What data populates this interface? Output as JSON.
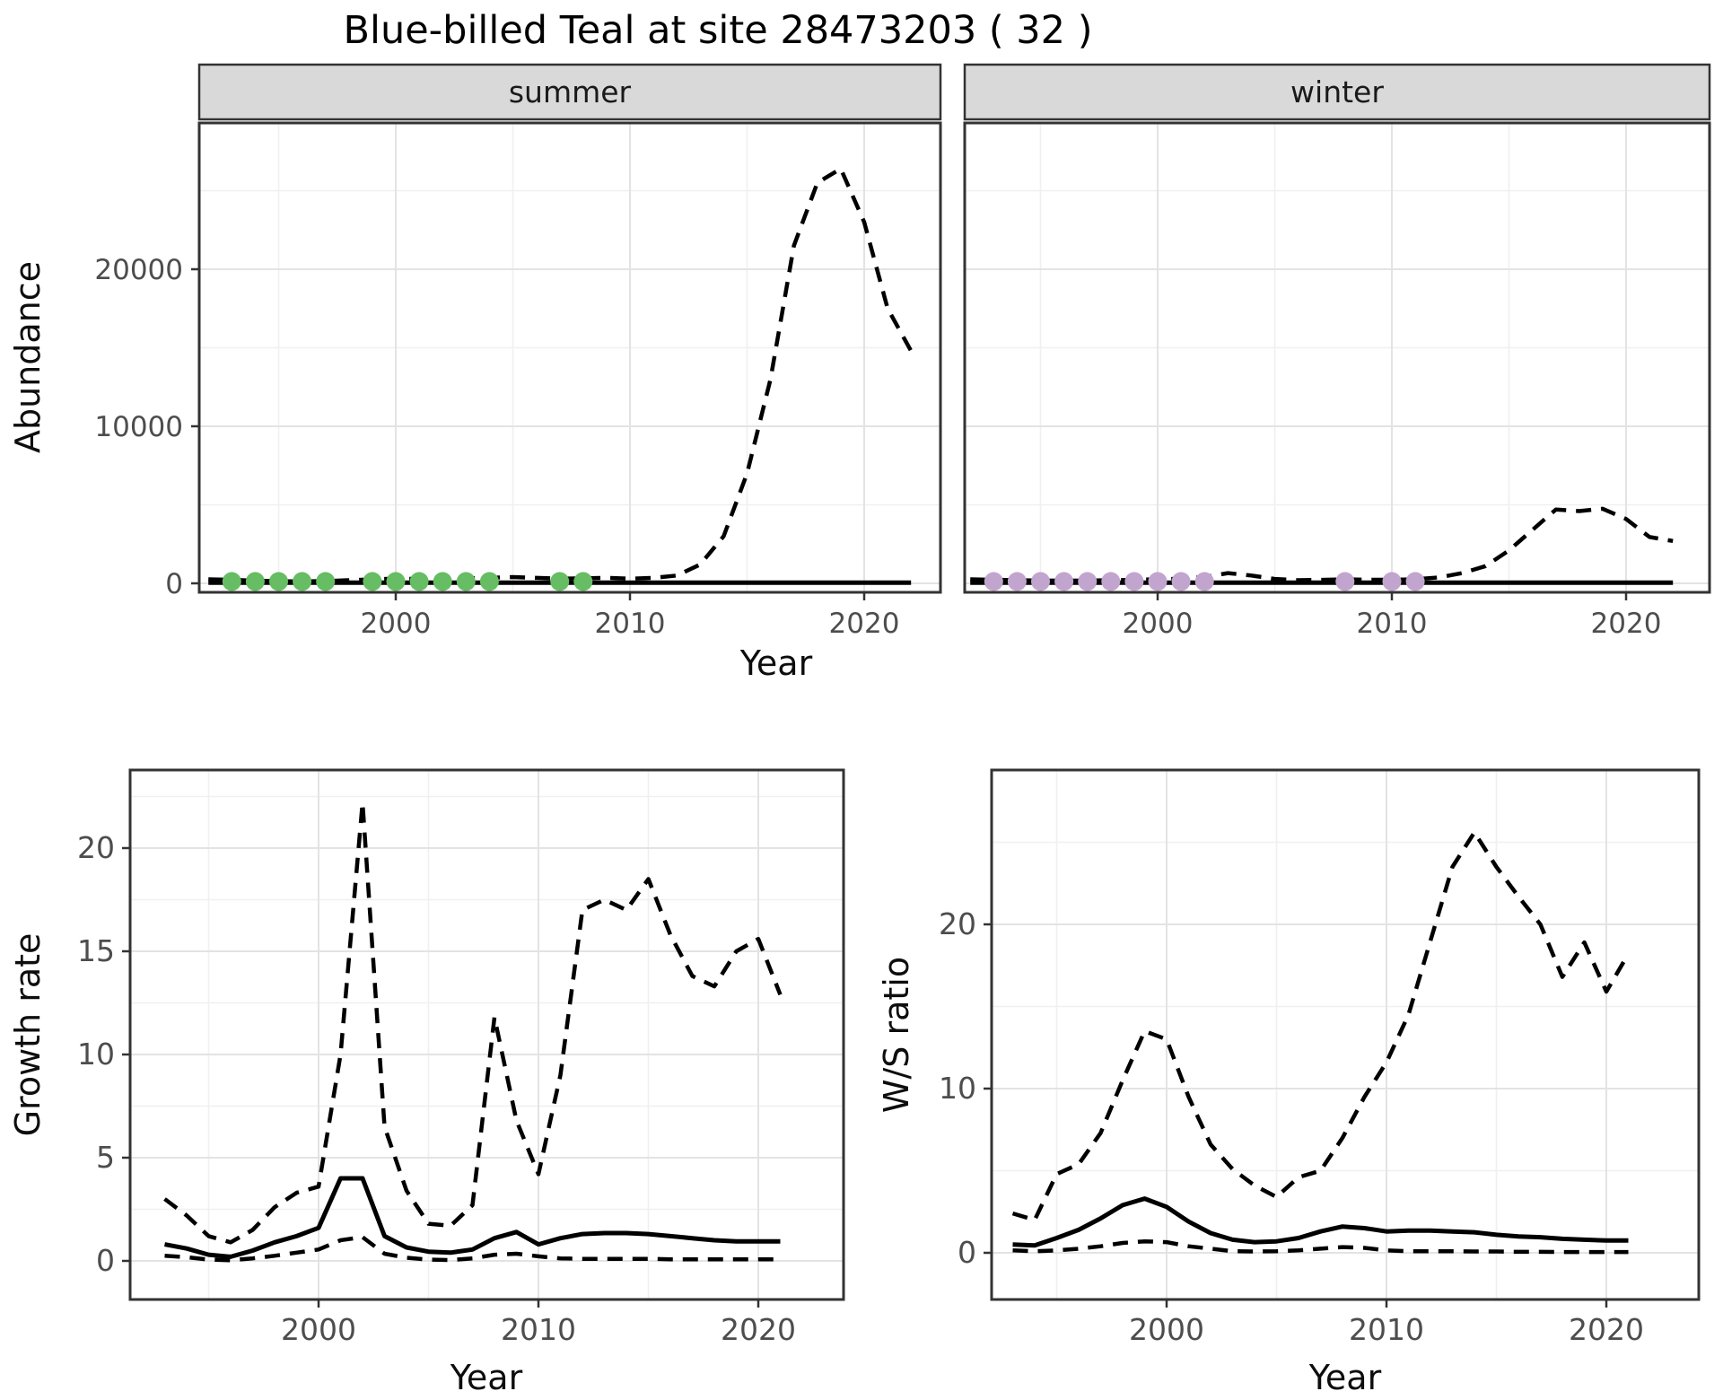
{
  "title": "Blue-billed Teal at site 28473203 ( 32 )",
  "colors": {
    "summer_point": "#66BD63",
    "winter_point": "#C2A5CF",
    "line": "#000000",
    "strip_bg": "#D9D9D9",
    "panel_border": "#333333",
    "grid_major": "#E3E3E3",
    "grid_minor": "#F0F0F0",
    "tick_label": "#4D4D4D"
  },
  "chart_data": [
    {
      "type": "line",
      "facet": "summer",
      "xlabel": "Year",
      "ylabel": "Abundance",
      "xticks": [
        2000,
        2010,
        2020
      ],
      "xticks_minor": [
        1995,
        2005,
        2015
      ],
      "yticks": [
        0,
        10000,
        20000
      ],
      "yticks_minor": [
        5000,
        15000,
        25000
      ],
      "xlim": [
        1991.6,
        2023.3
      ],
      "ylim": [
        -600,
        29300
      ],
      "grid": true,
      "x": [
        1992,
        1993,
        1994,
        1995,
        1996,
        1997,
        1998,
        1999,
        2000,
        2001,
        2002,
        2003,
        2004,
        2005,
        2006,
        2007,
        2008,
        2009,
        2010,
        2011,
        2012,
        2013,
        2014,
        2015,
        2016,
        2017,
        2018,
        2019,
        2020,
        2021,
        2022
      ],
      "series": [
        {
          "name": "mean",
          "style": "solid",
          "values": [
            40,
            40,
            40,
            40,
            40,
            40,
            40,
            40,
            40,
            40,
            40,
            40,
            40,
            40,
            40,
            40,
            40,
            40,
            40,
            40,
            40,
            40,
            40,
            40,
            40,
            40,
            40,
            40,
            40,
            40,
            40
          ]
        },
        {
          "name": "upper95",
          "style": "dashed",
          "values": [
            260,
            220,
            170,
            140,
            120,
            150,
            200,
            260,
            300,
            280,
            260,
            320,
            350,
            400,
            350,
            300,
            320,
            350,
            300,
            350,
            500,
            1200,
            3000,
            7000,
            13000,
            21500,
            25500,
            26400,
            23000,
            17500,
            14800
          ]
        }
      ],
      "points": {
        "name": "observed-counts",
        "color": "#66BD63",
        "x": [
          1993,
          1994,
          1995,
          1996,
          1997,
          1999,
          2000,
          2001,
          2002,
          2003,
          2004,
          2007,
          2008
        ],
        "y": [
          120,
          120,
          120,
          120,
          120,
          120,
          120,
          120,
          120,
          120,
          120,
          120,
          120
        ]
      }
    },
    {
      "type": "line",
      "facet": "winter",
      "xlabel": "Year",
      "ylabel": "Abundance",
      "xticks": [
        2000,
        2010,
        2020
      ],
      "xticks_minor": [
        1995,
        2005,
        2015
      ],
      "yticks": [
        0,
        10000,
        20000
      ],
      "yticks_minor": [
        5000,
        15000,
        25000
      ],
      "xlim": [
        1991.6,
        2023.3
      ],
      "ylim": [
        -600,
        29300
      ],
      "grid": true,
      "x": [
        1992,
        1993,
        1994,
        1995,
        1996,
        1997,
        1998,
        1999,
        2000,
        2001,
        2002,
        2003,
        2004,
        2005,
        2006,
        2007,
        2008,
        2009,
        2010,
        2011,
        2012,
        2013,
        2014,
        2015,
        2016,
        2017,
        2018,
        2019,
        2020,
        2021,
        2022
      ],
      "series": [
        {
          "name": "mean",
          "style": "solid",
          "values": [
            40,
            40,
            40,
            40,
            40,
            40,
            40,
            40,
            40,
            40,
            40,
            40,
            40,
            40,
            40,
            40,
            40,
            40,
            40,
            40,
            40,
            40,
            40,
            40,
            40,
            40,
            40,
            40,
            40,
            40,
            40
          ]
        },
        {
          "name": "upper95",
          "style": "dashed",
          "values": [
            260,
            230,
            200,
            180,
            170,
            180,
            200,
            220,
            260,
            300,
            400,
            650,
            500,
            280,
            200,
            220,
            260,
            230,
            230,
            260,
            380,
            650,
            1100,
            2100,
            3400,
            4700,
            4600,
            4750,
            4100,
            2950,
            2700
          ]
        }
      ],
      "points": {
        "name": "observed-counts",
        "color": "#C2A5CF",
        "x": [
          1993,
          1994,
          1995,
          1996,
          1997,
          1998,
          1999,
          2000,
          2001,
          2002,
          2008,
          2010,
          2011
        ],
        "y": [
          120,
          120,
          120,
          120,
          120,
          120,
          120,
          120,
          120,
          120,
          120,
          120,
          120
        ]
      }
    },
    {
      "type": "line",
      "name": "growth-rate",
      "xlabel": "Year",
      "ylabel": "Growth rate",
      "xticks": [
        2000,
        2010,
        2020
      ],
      "xticks_minor": [
        1995,
        2005,
        2015
      ],
      "yticks": [
        0,
        5,
        10,
        15,
        20
      ],
      "yticks_minor": [
        2.5,
        7.5,
        12.5,
        17.5,
        22.5
      ],
      "xlim": [
        1991.4,
        2023.9
      ],
      "ylim": [
        -1.9,
        23.8
      ],
      "grid": true,
      "x": [
        1993,
        1994,
        1995,
        1996,
        1997,
        1998,
        1999,
        2000,
        2001,
        2002,
        2003,
        2004,
        2005,
        2006,
        2007,
        2008,
        2009,
        2010,
        2011,
        2012,
        2013,
        2014,
        2015,
        2016,
        2017,
        2018,
        2019,
        2020,
        2021
      ],
      "series": [
        {
          "name": "upper95",
          "style": "dashed",
          "values": [
            3.0,
            2.2,
            1.2,
            0.9,
            1.5,
            2.6,
            3.3,
            3.6,
            10.0,
            22.2,
            6.5,
            3.4,
            1.8,
            1.7,
            2.7,
            11.8,
            6.8,
            4.2,
            9.0,
            17.0,
            17.5,
            17.0,
            18.5,
            15.8,
            13.8,
            13.3,
            15.0,
            15.6,
            12.9
          ]
        },
        {
          "name": "mean",
          "style": "solid",
          "values": [
            0.8,
            0.6,
            0.3,
            0.2,
            0.5,
            0.9,
            1.2,
            1.6,
            4.0,
            4.0,
            1.2,
            0.65,
            0.45,
            0.4,
            0.55,
            1.1,
            1.4,
            0.8,
            1.1,
            1.3,
            1.35,
            1.35,
            1.3,
            1.2,
            1.1,
            1.0,
            0.95,
            0.95,
            0.95
          ]
        },
        {
          "name": "lower95",
          "style": "dashed",
          "values": [
            0.25,
            0.18,
            0.06,
            0.03,
            0.12,
            0.25,
            0.4,
            0.55,
            1.0,
            1.15,
            0.35,
            0.15,
            0.06,
            0.04,
            0.12,
            0.3,
            0.35,
            0.22,
            0.12,
            0.1,
            0.1,
            0.1,
            0.1,
            0.08,
            0.08,
            0.08,
            0.08,
            0.08,
            0.08
          ]
        }
      ]
    },
    {
      "type": "line",
      "name": "winter-summer-ratio",
      "xlabel": "Year",
      "ylabel": "W/S ratio",
      "xticks": [
        2000,
        2010,
        2020
      ],
      "xticks_minor": [
        1995,
        2005,
        2015
      ],
      "yticks": [
        0,
        10,
        20
      ],
      "yticks_minor": [
        5,
        15,
        25
      ],
      "xlim": [
        1992.0,
        2024.2
      ],
      "ylim": [
        -2.8,
        29.4
      ],
      "grid": true,
      "x": [
        1993,
        1994,
        1995,
        1996,
        1997,
        1998,
        1999,
        2000,
        2001,
        2002,
        2003,
        2004,
        2005,
        2006,
        2007,
        2008,
        2009,
        2010,
        2011,
        2012,
        2013,
        2014,
        2015,
        2016,
        2017,
        2018,
        2019,
        2020,
        2021
      ],
      "series": [
        {
          "name": "upper95",
          "style": "dashed",
          "values": [
            2.4,
            2.0,
            4.8,
            5.4,
            7.3,
            10.5,
            13.5,
            13.0,
            9.5,
            6.6,
            5.1,
            4.1,
            3.4,
            4.6,
            5.0,
            7.0,
            9.5,
            11.6,
            14.5,
            19.0,
            23.5,
            25.6,
            23.5,
            21.7,
            20.0,
            16.8,
            18.9,
            15.9,
            18.2
          ]
        },
        {
          "name": "mean",
          "style": "solid",
          "values": [
            0.5,
            0.45,
            0.9,
            1.4,
            2.1,
            2.9,
            3.3,
            2.8,
            1.9,
            1.2,
            0.8,
            0.65,
            0.7,
            0.9,
            1.3,
            1.6,
            1.5,
            1.3,
            1.35,
            1.35,
            1.3,
            1.25,
            1.1,
            1.0,
            0.95,
            0.85,
            0.8,
            0.75,
            0.75
          ]
        },
        {
          "name": "lower95",
          "style": "dashed",
          "values": [
            0.15,
            0.1,
            0.15,
            0.25,
            0.4,
            0.6,
            0.7,
            0.65,
            0.4,
            0.25,
            0.1,
            0.08,
            0.1,
            0.15,
            0.25,
            0.35,
            0.3,
            0.15,
            0.1,
            0.1,
            0.1,
            0.08,
            0.08,
            0.06,
            0.06,
            0.05,
            0.05,
            0.05,
            0.05
          ]
        }
      ]
    }
  ]
}
